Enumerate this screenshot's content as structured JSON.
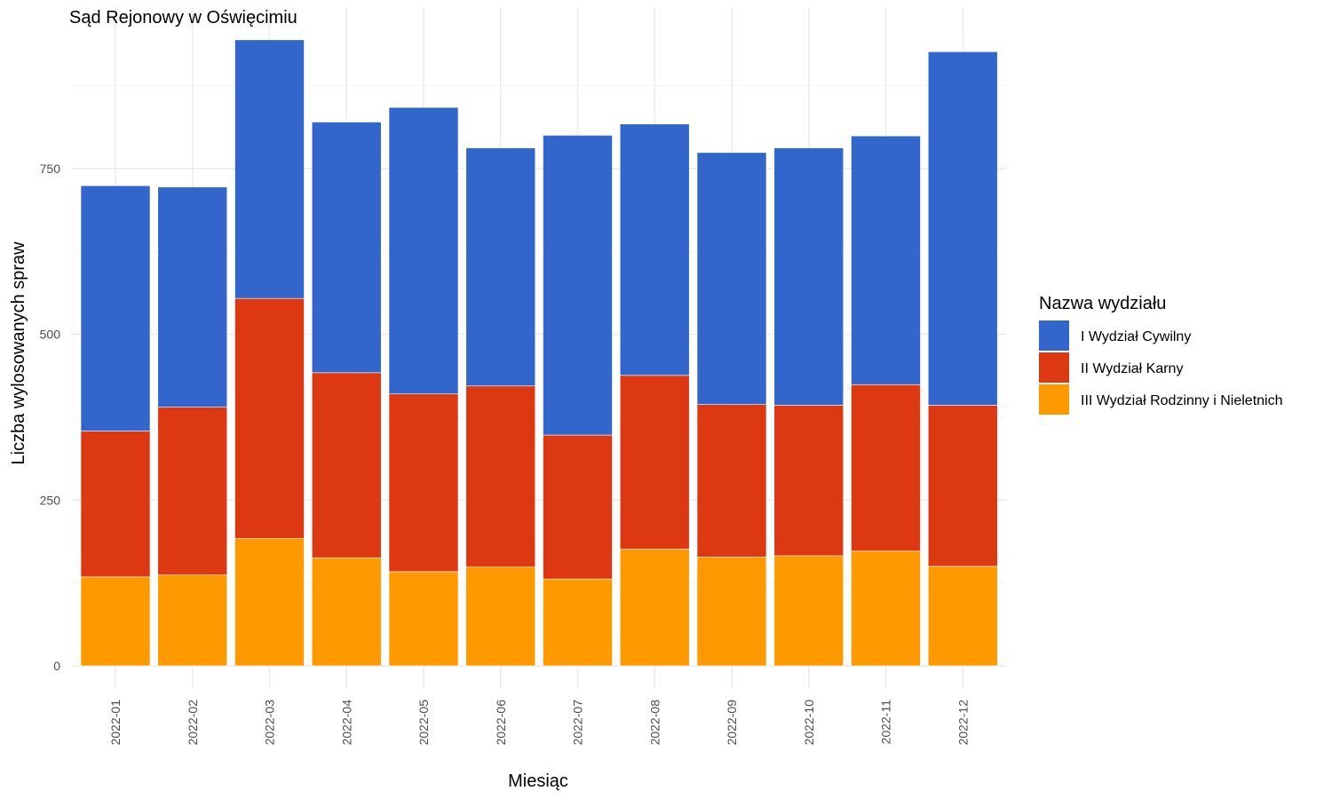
{
  "chart_data": {
    "type": "bar",
    "stacked": true,
    "title": "Sąd Rejonowy w Oświęcimiu",
    "xlabel": "Miesiąc",
    "ylabel": "Liczba wylosowanych spraw",
    "categories": [
      "2022-01",
      "2022-02",
      "2022-03",
      "2022-04",
      "2022-05",
      "2022-06",
      "2022-07",
      "2022-08",
      "2022-09",
      "2022-10",
      "2022-11",
      "2022-12"
    ],
    "ylim": [
      0,
      990
    ],
    "yticks": [
      0,
      250,
      500,
      750
    ],
    "yticks_labels": [
      "0",
      "250",
      "500",
      "750"
    ],
    "grid": true,
    "legend": {
      "title": "Nazwa wydziału",
      "position": "right"
    },
    "series": [
      {
        "name": "III Wydział Rodzinny i Nieletnich",
        "color": "#FF9900",
        "values": [
          134,
          137,
          192,
          163,
          142,
          149,
          131,
          176,
          164,
          166,
          173,
          150
        ]
      },
      {
        "name": "II Wydział Karny",
        "color": "#DC3912",
        "values": [
          220,
          253,
          362,
          279,
          268,
          273,
          217,
          262,
          230,
          227,
          251,
          243
        ]
      },
      {
        "name": "I Wydział Cywilny",
        "color": "#3366CC",
        "values": [
          370,
          332,
          390,
          378,
          432,
          359,
          452,
          379,
          380,
          388,
          375,
          533
        ]
      }
    ],
    "legend_order": [
      "I Wydział Cywilny",
      "II Wydział Karny",
      "III Wydział Rodzinny i Nieletnich"
    ]
  }
}
